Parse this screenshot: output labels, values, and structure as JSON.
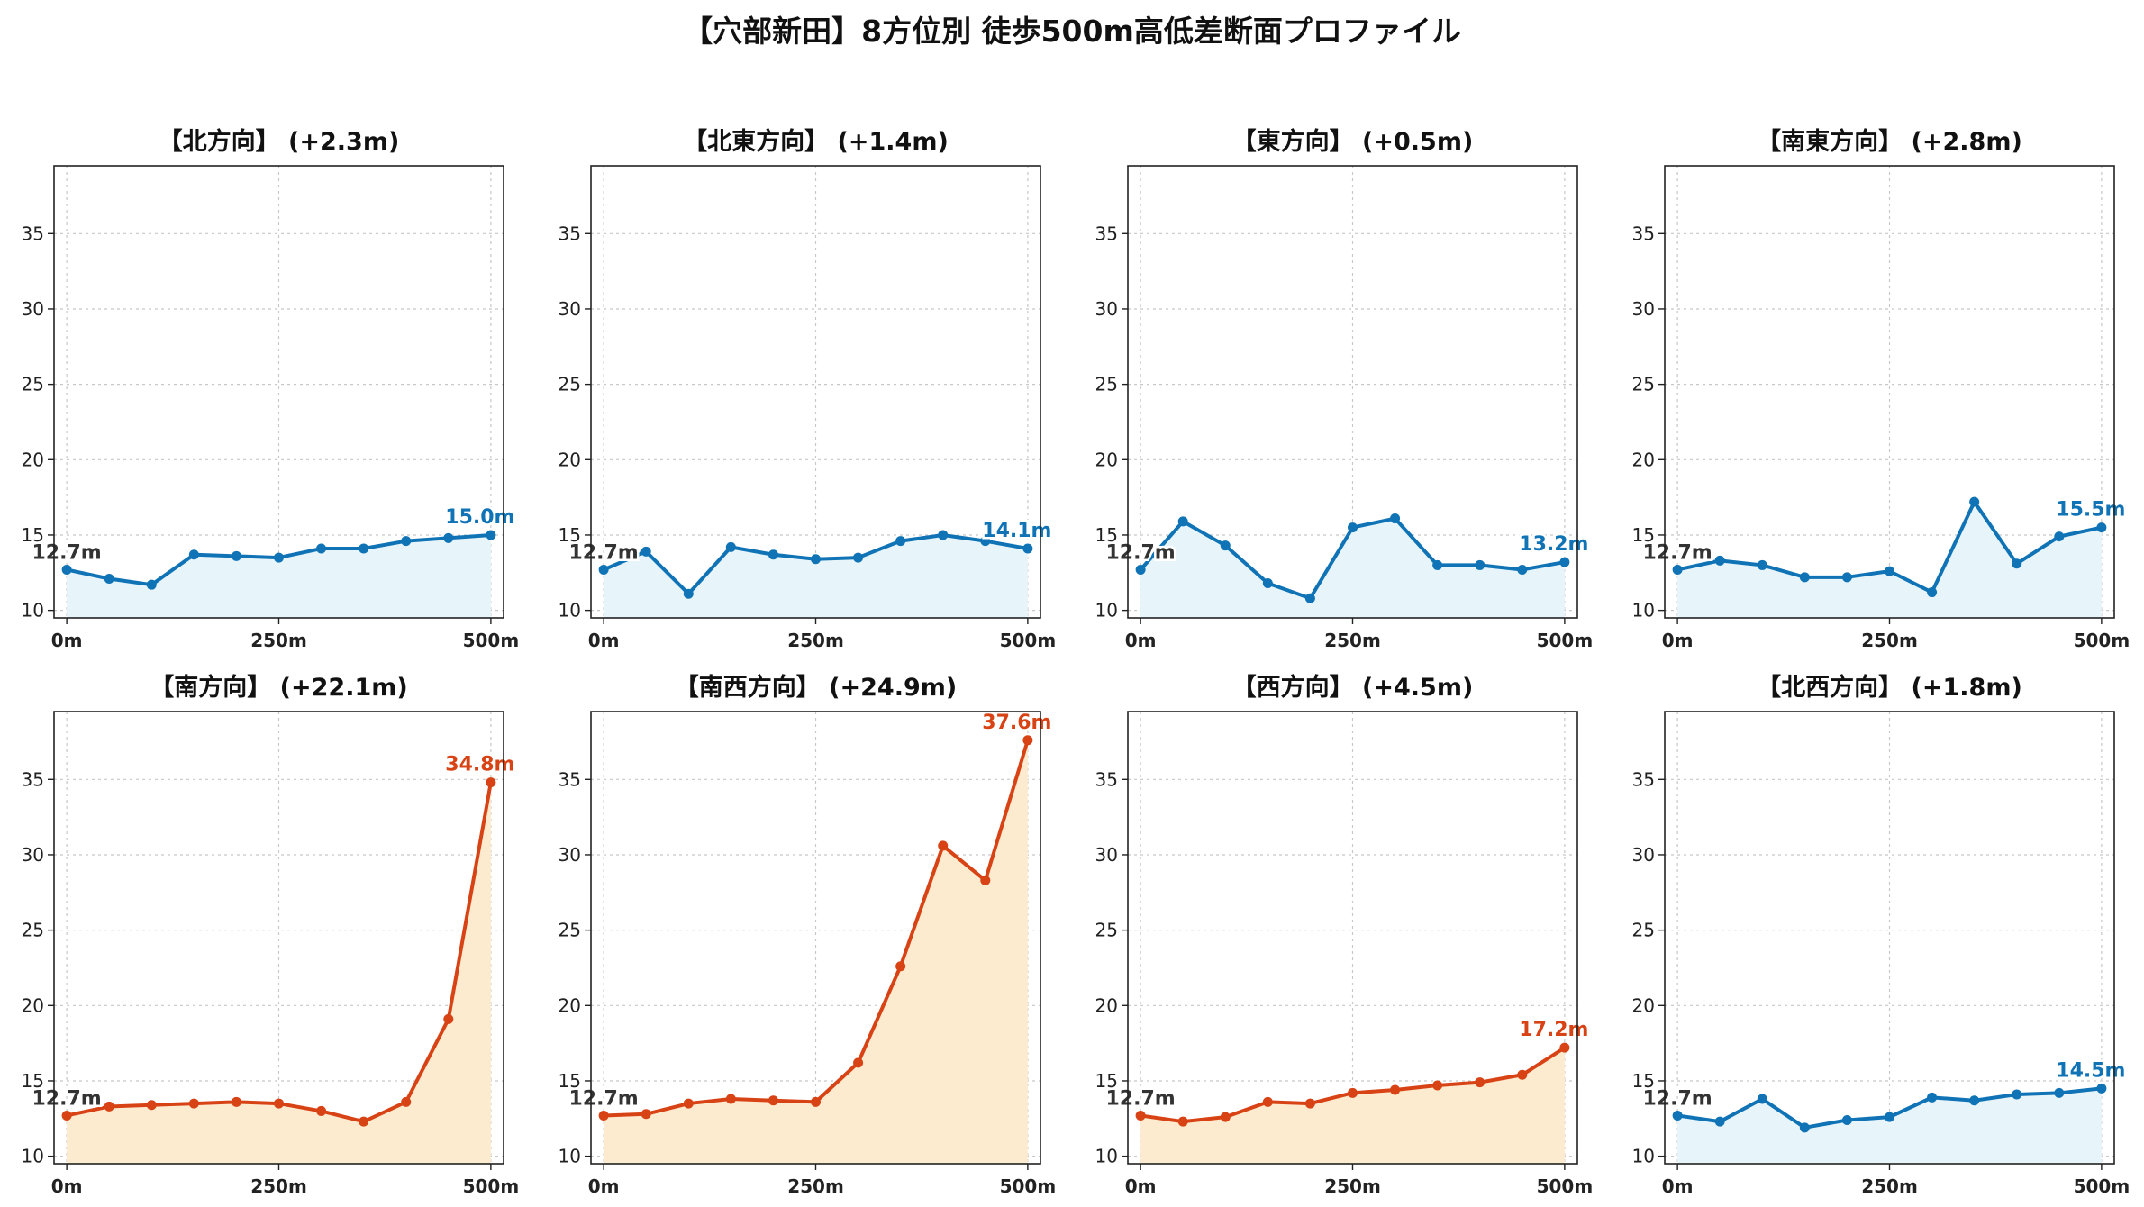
{
  "title": "【穴部新田】8方位別 徒歩500m高低差断面プロファイル",
  "colors": {
    "rise_line": "#d84315",
    "rise_fill": "#fdebcf",
    "flat_line": "#0f73b5",
    "flat_fill": "#e7f5fb",
    "start_label": "#333333"
  },
  "chart_data": [
    {
      "type": "line",
      "title": "【北方向】 (+2.3m)",
      "style": "flat",
      "x": [
        0,
        50,
        100,
        150,
        200,
        250,
        300,
        350,
        400,
        450,
        500
      ],
      "y": [
        12.7,
        12.1,
        11.7,
        13.7,
        13.6,
        13.5,
        14.1,
        14.1,
        14.6,
        14.8,
        15.0
      ],
      "start_label": "12.7m",
      "end_label": "15.0m"
    },
    {
      "type": "line",
      "title": "【北東方向】 (+1.4m)",
      "style": "flat",
      "x": [
        0,
        50,
        100,
        150,
        200,
        250,
        300,
        350,
        400,
        450,
        500
      ],
      "y": [
        12.7,
        13.9,
        11.1,
        14.2,
        13.7,
        13.4,
        13.5,
        14.6,
        15.0,
        14.6,
        14.1
      ],
      "start_label": "12.7m",
      "end_label": "14.1m"
    },
    {
      "type": "line",
      "title": "【東方向】 (+0.5m)",
      "style": "flat",
      "x": [
        0,
        50,
        100,
        150,
        200,
        250,
        300,
        350,
        400,
        450,
        500
      ],
      "y": [
        12.7,
        15.9,
        14.3,
        11.8,
        10.8,
        15.5,
        16.1,
        13.0,
        13.0,
        12.7,
        13.2
      ],
      "start_label": "12.7m",
      "end_label": "13.2m"
    },
    {
      "type": "line",
      "title": "【南東方向】 (+2.8m)",
      "style": "flat",
      "x": [
        0,
        50,
        100,
        150,
        200,
        250,
        300,
        350,
        400,
        450,
        500
      ],
      "y": [
        12.7,
        13.3,
        13.0,
        12.2,
        12.2,
        12.6,
        11.2,
        17.2,
        13.1,
        14.9,
        15.5
      ],
      "start_label": "12.7m",
      "end_label": "15.5m"
    },
    {
      "type": "line",
      "title": "【南方向】 (+22.1m)",
      "style": "rise",
      "x": [
        0,
        50,
        100,
        150,
        200,
        250,
        300,
        350,
        400,
        450,
        500
      ],
      "y": [
        12.7,
        13.3,
        13.4,
        13.5,
        13.6,
        13.5,
        13.0,
        12.3,
        13.6,
        19.1,
        34.8
      ],
      "start_label": "12.7m",
      "end_label": "34.8m"
    },
    {
      "type": "line",
      "title": "【南西方向】 (+24.9m)",
      "style": "rise",
      "x": [
        0,
        50,
        100,
        150,
        200,
        250,
        300,
        350,
        400,
        450,
        500
      ],
      "y": [
        12.7,
        12.8,
        13.5,
        13.8,
        13.7,
        13.6,
        16.2,
        22.6,
        30.6,
        28.3,
        37.6
      ],
      "start_label": "12.7m",
      "end_label": "37.6m"
    },
    {
      "type": "line",
      "title": "【西方向】 (+4.5m)",
      "style": "rise",
      "x": [
        0,
        50,
        100,
        150,
        200,
        250,
        300,
        350,
        400,
        450,
        500
      ],
      "y": [
        12.7,
        12.3,
        12.6,
        13.6,
        13.5,
        14.2,
        14.4,
        14.7,
        14.9,
        15.4,
        17.2
      ],
      "start_label": "12.7m",
      "end_label": "17.2m"
    },
    {
      "type": "line",
      "title": "【北西方向】 (+1.8m)",
      "style": "flat",
      "x": [
        0,
        50,
        100,
        150,
        200,
        250,
        300,
        350,
        400,
        450,
        500
      ],
      "y": [
        12.7,
        12.3,
        13.8,
        11.9,
        12.4,
        12.6,
        13.9,
        13.7,
        14.1,
        14.2,
        14.5
      ],
      "start_label": "12.7m",
      "end_label": "14.5m"
    }
  ],
  "axes": {
    "x_ticks": [
      0,
      250,
      500
    ],
    "x_tick_labels": [
      "0m",
      "250m",
      "500m"
    ],
    "y_ticks": [
      10,
      15,
      20,
      25,
      30,
      35
    ],
    "xlim": [
      -15,
      515
    ],
    "ylim": [
      9.5,
      39.5
    ],
    "grid": true
  }
}
